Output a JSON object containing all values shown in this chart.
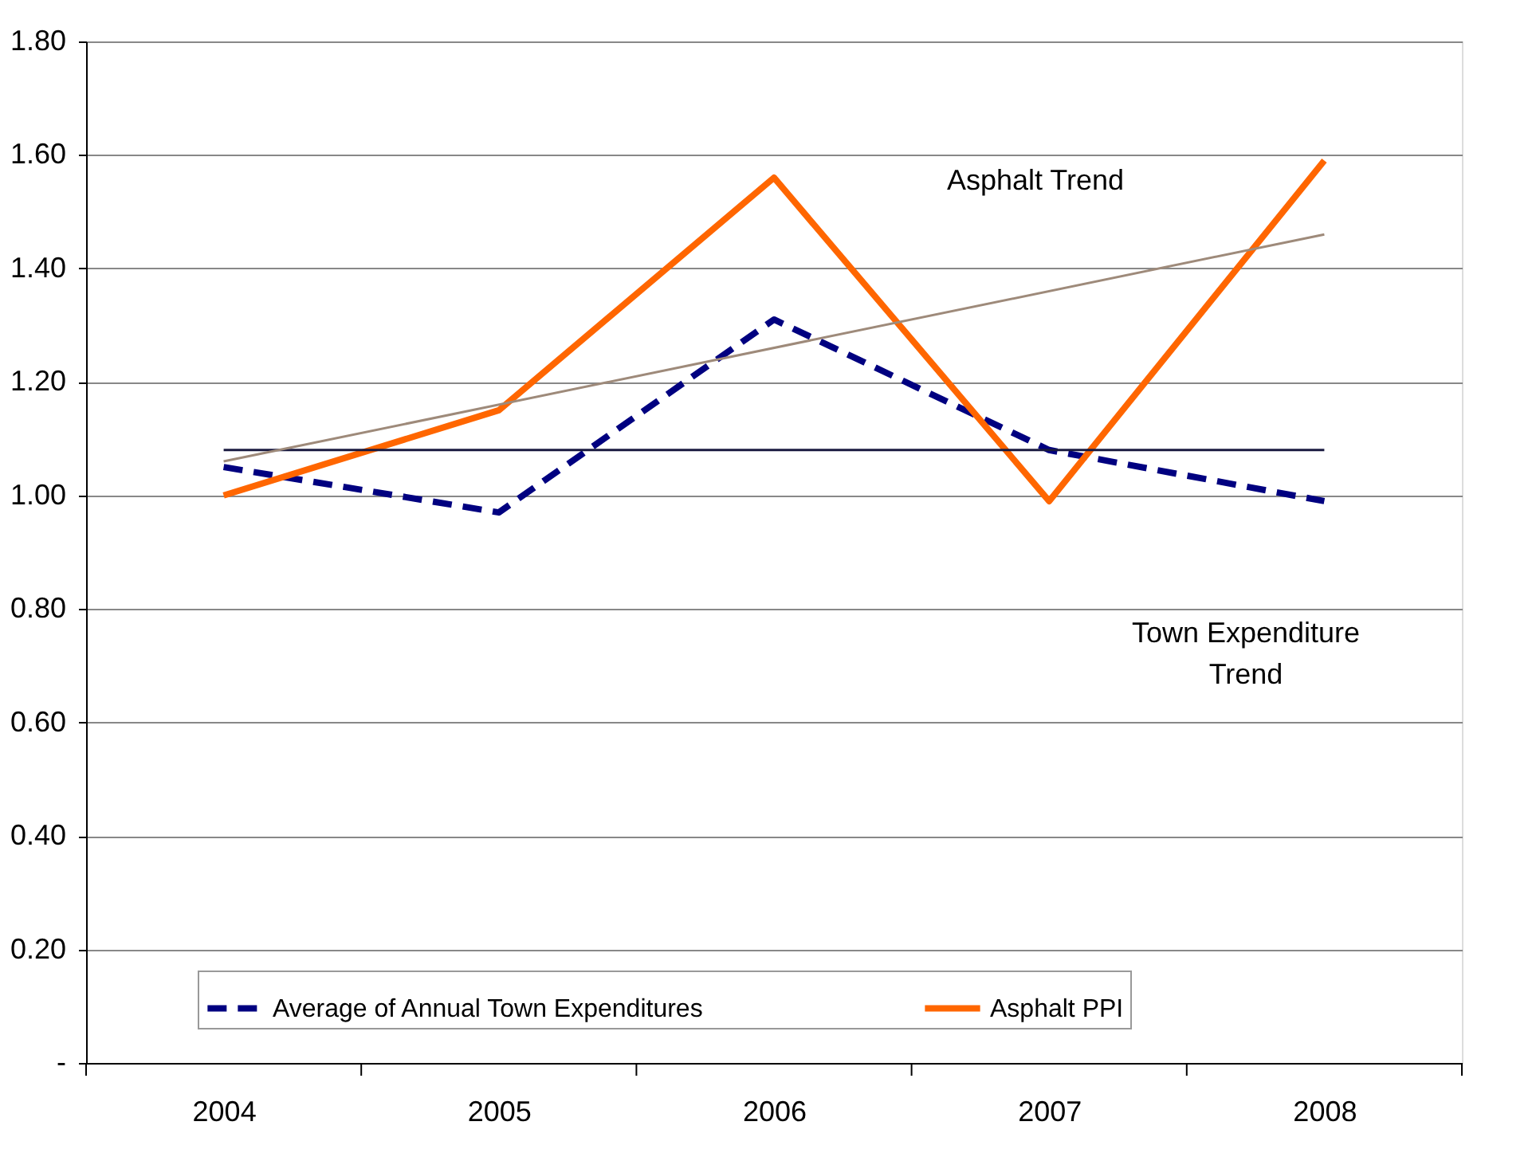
{
  "chart_data": {
    "type": "line",
    "categories": [
      "2004",
      "2005",
      "2006",
      "2007",
      "2008"
    ],
    "series": [
      {
        "name": "Average of Annual Town Expenditures",
        "color": "#000080",
        "line_style": "dashed",
        "values": [
          1.05,
          0.97,
          1.31,
          1.08,
          0.99
        ]
      },
      {
        "name": "Asphalt PPI",
        "color": "#ff6600",
        "line_style": "solid",
        "values": [
          1.0,
          1.15,
          1.56,
          0.99,
          1.59
        ]
      },
      {
        "type": "line",
        "color": "#1a1a40",
        "line_style": "solid",
        "values": [
          1.08,
          null,
          null,
          null,
          1.08
        ]
      },
      {
        "type": "line",
        "color": "#9e8a7a",
        "line_style": "solid",
        "values": [
          1.06,
          null,
          null,
          null,
          1.46
        ]
      }
    ],
    "ylim": [
      0,
      1.8
    ],
    "yticks": [
      {
        "value": 0,
        "label": "-"
      },
      {
        "value": 0.2,
        "label": "0.20"
      },
      {
        "value": 0.4,
        "label": "0.40"
      },
      {
        "value": 0.6,
        "label": "0.60"
      },
      {
        "value": 0.8,
        "label": "0.80"
      },
      {
        "value": 1.0,
        "label": "1.00"
      },
      {
        "value": 1.2,
        "label": "1.20"
      },
      {
        "value": 1.4,
        "label": "1.40"
      },
      {
        "value": 1.6,
        "label": "1.60"
      },
      {
        "value": 1.8,
        "label": "1.80"
      }
    ],
    "grid": "y",
    "legend": "bottom",
    "marker": "none",
    "annotations": [
      "Asphalt Trend",
      "Town Expenditure Trend"
    ]
  }
}
